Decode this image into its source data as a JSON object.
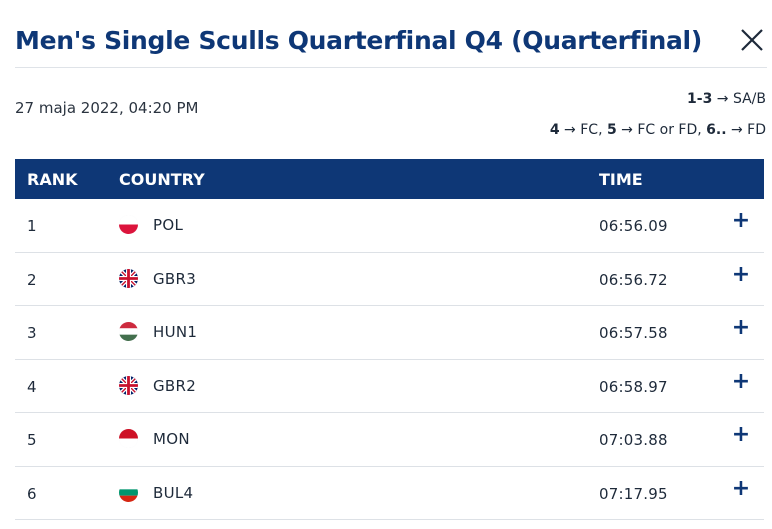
{
  "header": {
    "title": "Men's Single Sculls Quarterfinal Q4 (Quarterfinal)",
    "close_icon": "close-icon"
  },
  "meta": {
    "date": "27 maja 2022, 04:20 PM",
    "progression_line1": {
      "bold": "1-3",
      "rest": " → SA/B"
    },
    "progression_line2": {
      "bold1": "4",
      "mid1": " → FC, ",
      "bold2": "5",
      "mid2": " → FC or FD, ",
      "bold3": "6..",
      "mid3": " → FD"
    }
  },
  "table": {
    "columns": {
      "rank": "RANK",
      "country": "COUNTRY",
      "time": "TIME"
    },
    "rows": [
      {
        "rank": "1",
        "country": "POL",
        "time": "06:56.09",
        "flag": "poland-flag-icon"
      },
      {
        "rank": "2",
        "country": "GBR3",
        "time": "06:56.72",
        "flag": "uk-flag-icon"
      },
      {
        "rank": "3",
        "country": "HUN1",
        "time": "06:57.58",
        "flag": "hungary-flag-icon"
      },
      {
        "rank": "4",
        "country": "GBR2",
        "time": "06:58.97",
        "flag": "uk-flag-icon"
      },
      {
        "rank": "5",
        "country": "MON",
        "time": "07:03.88",
        "flag": "monaco-flag-icon"
      },
      {
        "rank": "6",
        "country": "BUL4",
        "time": "07:17.95",
        "flag": "bulgaria-flag-icon"
      }
    ],
    "expand_label": "+"
  },
  "colors": {
    "accent": "#0e3776",
    "divider": "#dde1e6"
  }
}
